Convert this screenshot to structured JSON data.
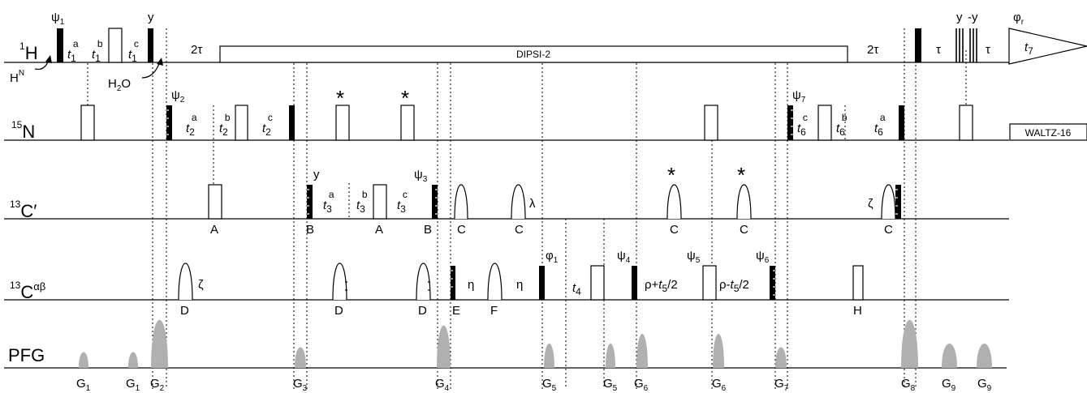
{
  "channels": {
    "h1_mass": "1",
    "h1_sym": "H",
    "n15_mass": "15",
    "n15_sym": "N",
    "c13_mass": "13",
    "c13_sym": "C",
    "prime": "′",
    "alphabeta": "αβ",
    "pfg": "PFG"
  },
  "vars": {
    "t": "t",
    "one": "1",
    "two": "2",
    "three": "3",
    "four": "4",
    "five": "5",
    "six": "6",
    "seven": "7",
    "a": "a",
    "b": "b",
    "c": "c"
  },
  "h1": {
    "psi": "ψ",
    "psi1_sub": "1",
    "y": "y",
    "neg_y": "-y",
    "two_tau": "2τ",
    "tau": "τ",
    "dipsi": "DIPSI-2",
    "phi": "φ",
    "r": "r",
    "hn_h": "H",
    "hn_n": "N",
    "h2o_h": "H",
    "h2o_2": "2",
    "h2o_o": "O"
  },
  "n15": {
    "psi2_sub": "2",
    "psi7_sub": "7",
    "waltz": "WALTZ-16"
  },
  "marks": {
    "asterisk": "*"
  },
  "c13": {
    "psi3_sub": "3",
    "lambda": "λ",
    "zeta": "ζ",
    "A": "A",
    "B": "B",
    "C": "C"
  },
  "cab": {
    "eta": "η",
    "phi1_sub": "1",
    "psi4_sub": "4",
    "psi5_sub": "5",
    "psi6_sub": "6",
    "rho_plus": "ρ+",
    "rho_minus": "ρ-",
    "half": "/2",
    "D": "D",
    "E": "E",
    "F": "F",
    "H": "H"
  },
  "grad": {
    "G": "G",
    "g1": "1",
    "g2": "2",
    "g3": "3",
    "g4": "4",
    "g5": "5",
    "g6": "6",
    "g7": "7",
    "g8": "8",
    "g9": "9"
  }
}
